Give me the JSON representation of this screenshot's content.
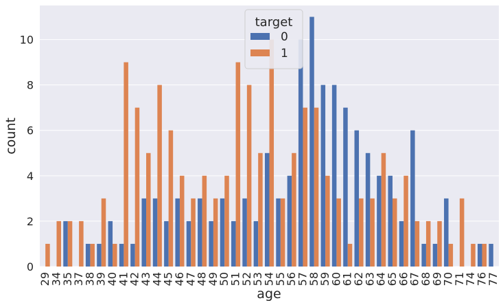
{
  "chart_data": {
    "type": "bar",
    "title": "",
    "xlabel": "age",
    "ylabel": "count",
    "ylim": [
      0,
      11.5
    ],
    "yticks": [
      0,
      2,
      4,
      6,
      8,
      10
    ],
    "grid": true,
    "legend": {
      "title": "target",
      "placement": "top-center"
    },
    "categories": [
      "29",
      "34",
      "35",
      "37",
      "38",
      "39",
      "40",
      "41",
      "42",
      "43",
      "44",
      "45",
      "46",
      "47",
      "48",
      "49",
      "50",
      "51",
      "52",
      "53",
      "54",
      "55",
      "56",
      "57",
      "58",
      "59",
      "60",
      "61",
      "62",
      "63",
      "64",
      "65",
      "66",
      "67",
      "68",
      "69",
      "70",
      "71",
      "74",
      "76",
      "77"
    ],
    "series": [
      {
        "name": "0",
        "color": "#4c72b0",
        "values": [
          0,
          0,
          2,
          0,
          1,
          1,
          2,
          1,
          1,
          3,
          3,
          2,
          3,
          2,
          3,
          2,
          3,
          2,
          3,
          2,
          5,
          3,
          4,
          10,
          11,
          8,
          8,
          7,
          6,
          5,
          4,
          4,
          2,
          6,
          1,
          1,
          3,
          0,
          0,
          1,
          1
        ]
      },
      {
        "name": "1",
        "color": "#dd8452",
        "values": [
          1,
          2,
          2,
          2,
          1,
          3,
          1,
          9,
          7,
          5,
          8,
          6,
          4,
          3,
          4,
          3,
          4,
          9,
          8,
          5,
          10,
          3,
          5,
          7,
          7,
          4,
          3,
          1,
          3,
          3,
          5,
          3,
          4,
          2,
          2,
          2,
          1,
          3,
          1,
          1,
          0
        ]
      }
    ]
  }
}
